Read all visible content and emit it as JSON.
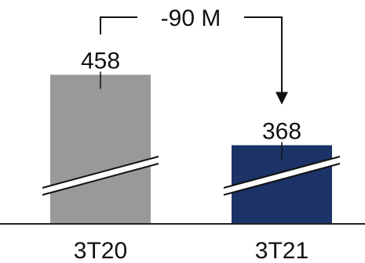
{
  "chart_data": {
    "type": "bar",
    "categories": [
      "3T20",
      "3T21"
    ],
    "values": [
      458,
      368
    ],
    "data_labels": [
      "458",
      "368"
    ],
    "colors": [
      "#999999",
      "#1b3366"
    ],
    "axis_break": true,
    "annotation": {
      "text": "-90 M",
      "from": "3T20",
      "to": "3T21"
    },
    "legend": "none",
    "grid": false
  }
}
